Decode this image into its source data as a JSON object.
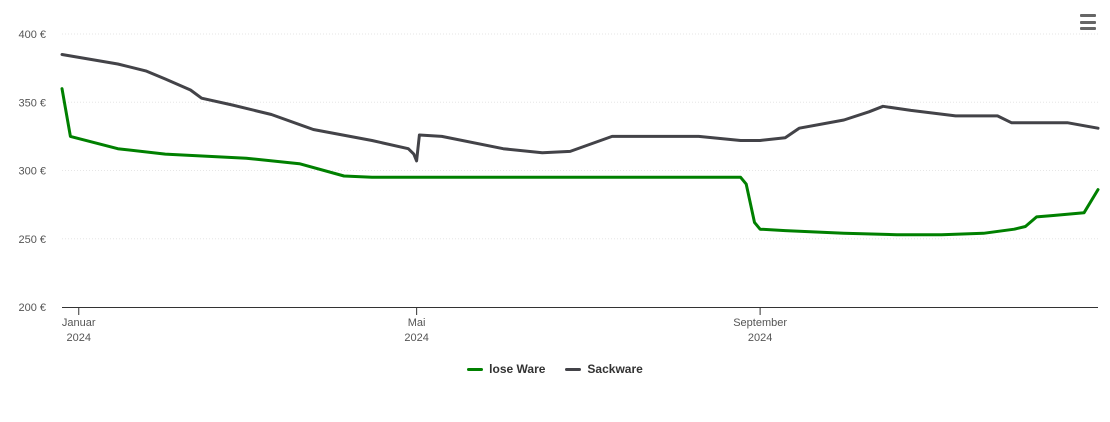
{
  "colors": {
    "lose_ware": "#008000",
    "sackware": "#434348",
    "grid": "#e6e6e6",
    "axis": "#333333"
  },
  "menu": {
    "icon": "hamburger-menu-icon"
  },
  "chart_data": {
    "type": "line",
    "title": "",
    "xlabel": "",
    "ylabel": "",
    "ylim": [
      200,
      400
    ],
    "xlim": [
      "2023-12-26",
      "2024-12-31"
    ],
    "y_ticks": [
      {
        "value": 200,
        "label": "200 €"
      },
      {
        "value": 250,
        "label": "250 €"
      },
      {
        "value": 300,
        "label": "300 €"
      },
      {
        "value": 350,
        "label": "350 €"
      },
      {
        "value": 400,
        "label": "400 €"
      }
    ],
    "x_ticks": [
      {
        "date": "2024-01-01",
        "month": "Januar",
        "year": "2024"
      },
      {
        "date": "2024-05-01",
        "month": "Mai",
        "year": "2024"
      },
      {
        "date": "2024-09-01",
        "month": "September",
        "year": "2024"
      }
    ],
    "grid": true,
    "legend": "bottom-center",
    "series": [
      {
        "name": "lose Ware",
        "points": [
          [
            "2023-12-26",
            360
          ],
          [
            "2023-12-29",
            325
          ],
          [
            "2024-01-15",
            316
          ],
          [
            "2024-02-01",
            312
          ],
          [
            "2024-03-01",
            309
          ],
          [
            "2024-03-20",
            305
          ],
          [
            "2024-04-05",
            296
          ],
          [
            "2024-04-15",
            295
          ],
          [
            "2024-05-15",
            295
          ],
          [
            "2024-07-01",
            295
          ],
          [
            "2024-08-25",
            295
          ],
          [
            "2024-08-27",
            290
          ],
          [
            "2024-08-30",
            262
          ],
          [
            "2024-09-01",
            257
          ],
          [
            "2024-09-10",
            256
          ],
          [
            "2024-10-01",
            254
          ],
          [
            "2024-10-20",
            253
          ],
          [
            "2024-11-05",
            253
          ],
          [
            "2024-11-20",
            254
          ],
          [
            "2024-12-01",
            257
          ],
          [
            "2024-12-05",
            259
          ],
          [
            "2024-12-09",
            266
          ],
          [
            "2024-12-15",
            267
          ],
          [
            "2024-12-26",
            269
          ],
          [
            "2024-12-31",
            286
          ]
        ]
      },
      {
        "name": "Sackware",
        "points": [
          [
            "2023-12-26",
            385
          ],
          [
            "2024-01-15",
            378
          ],
          [
            "2024-01-25",
            373
          ],
          [
            "2024-02-01",
            367
          ],
          [
            "2024-02-10",
            359
          ],
          [
            "2024-02-14",
            353
          ],
          [
            "2024-02-25",
            348
          ],
          [
            "2024-03-10",
            341
          ],
          [
            "2024-03-25",
            330
          ],
          [
            "2024-04-15",
            322
          ],
          [
            "2024-04-28",
            316
          ],
          [
            "2024-04-30",
            312
          ],
          [
            "2024-05-01",
            307
          ],
          [
            "2024-05-02",
            326
          ],
          [
            "2024-05-10",
            325
          ],
          [
            "2024-06-01",
            316
          ],
          [
            "2024-06-15",
            313
          ],
          [
            "2024-06-25",
            314
          ],
          [
            "2024-07-10",
            325
          ],
          [
            "2024-08-10",
            325
          ],
          [
            "2024-08-25",
            322
          ],
          [
            "2024-09-01",
            322
          ],
          [
            "2024-09-10",
            324
          ],
          [
            "2024-09-15",
            331
          ],
          [
            "2024-10-01",
            337
          ],
          [
            "2024-10-10",
            343
          ],
          [
            "2024-10-15",
            347
          ],
          [
            "2024-10-25",
            344
          ],
          [
            "2024-11-10",
            340
          ],
          [
            "2024-11-25",
            340
          ],
          [
            "2024-11-30",
            335
          ],
          [
            "2024-12-05",
            335
          ],
          [
            "2024-12-20",
            335
          ],
          [
            "2024-12-31",
            331
          ]
        ]
      }
    ]
  }
}
